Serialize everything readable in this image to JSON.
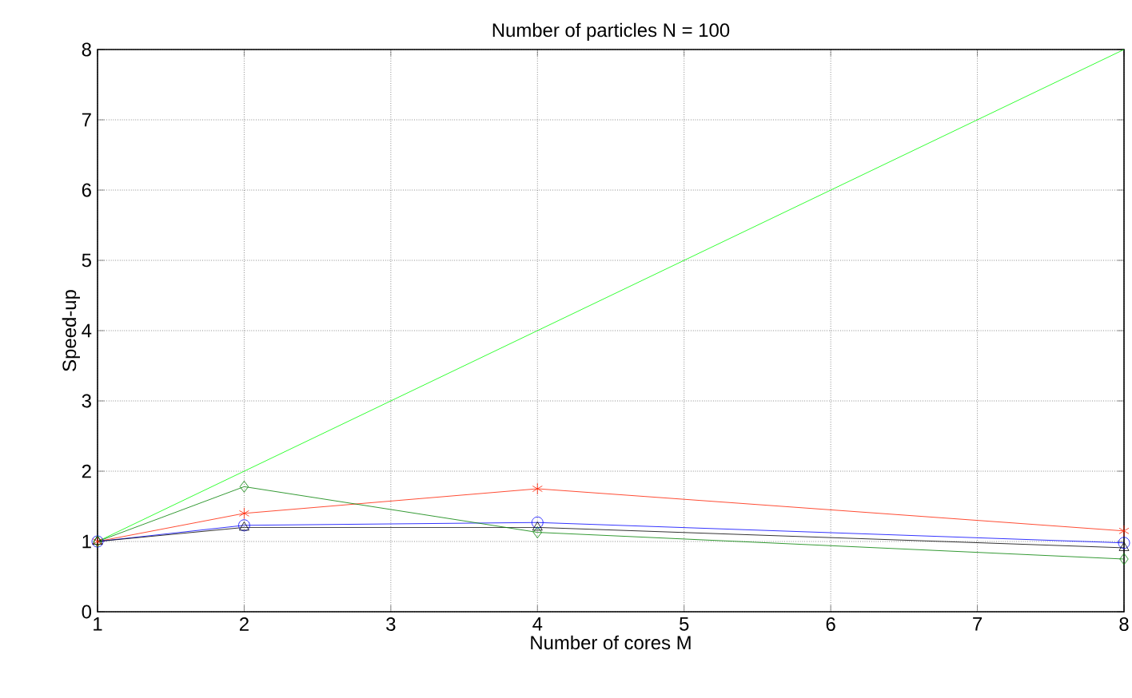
{
  "chart_data": {
    "type": "line",
    "title": "Number of particles N = 100",
    "xlabel": "Number of cores M",
    "ylabel": "Speed-up",
    "x": [
      1,
      2,
      4,
      8
    ],
    "series": [
      {
        "color": "#00ff00",
        "values": [
          1,
          2,
          4,
          8
        ],
        "marker": "none"
      },
      {
        "color": "#ff2000",
        "values": [
          1,
          1.4,
          1.75,
          1.15
        ],
        "marker": "cross"
      },
      {
        "color": "#0000ff",
        "values": [
          1,
          1.23,
          1.27,
          0.98
        ],
        "marker": "circle"
      },
      {
        "color": "#000000",
        "values": [
          1,
          1.2,
          1.2,
          0.91
        ],
        "marker": "triangle"
      },
      {
        "color": "#008000",
        "values": [
          1,
          1.78,
          1.13,
          0.75
        ],
        "marker": "diamond"
      }
    ],
    "xlim": [
      1,
      8
    ],
    "ylim": [
      0,
      8
    ],
    "xticks": [
      1,
      2,
      3,
      4,
      5,
      6,
      7,
      8
    ],
    "yticks": [
      0,
      1,
      2,
      3,
      4,
      5,
      6,
      7,
      8
    ],
    "grid": true
  }
}
